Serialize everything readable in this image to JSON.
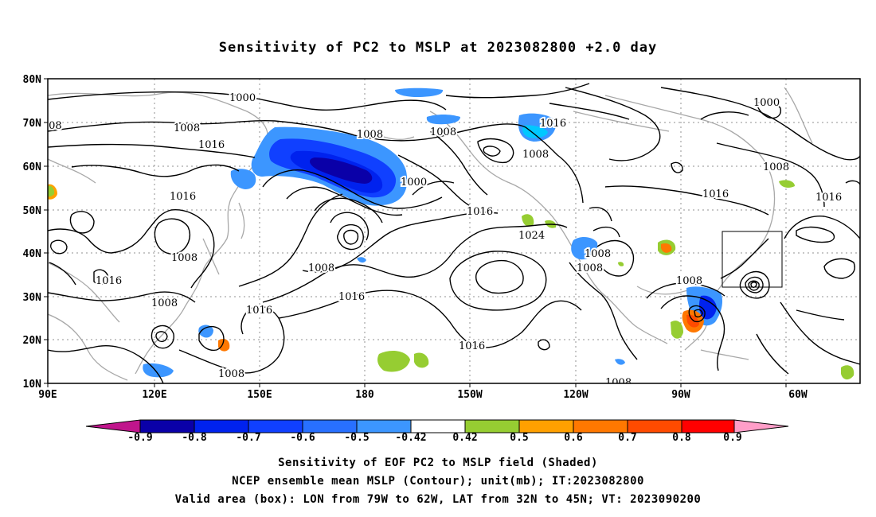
{
  "title": "Sensitivity of PC2 to MSLP at 2023082800 +2.0 day",
  "lat_labels": [
    "80N",
    "70N",
    "60N",
    "50N",
    "40N",
    "30N",
    "20N",
    "10N"
  ],
  "lon_labels": [
    "90E",
    "120E",
    "150E",
    "180",
    "150W",
    "120W",
    "90W",
    "60W"
  ],
  "contour_labels": [
    "1000",
    "1008",
    "1016",
    "1024"
  ],
  "colorbar": {
    "colors": [
      "#c0158c",
      "#0a00a8",
      "#0022ee",
      "#1040ff",
      "#2870ff",
      "#3c96ff",
      "#00c8ff",
      "#ffffff",
      "#96cd32",
      "#ffa000",
      "#ff7800",
      "#ff4b00",
      "#ff0000",
      "#ff9ec8"
    ],
    "labels": [
      "-0.9",
      "-0.8",
      "-0.7",
      "-0.6",
      "-0.5",
      "-0.42",
      "0.42",
      "0.5",
      "0.6",
      "0.7",
      "0.8",
      "0.9"
    ]
  },
  "captions": {
    "line1": "Sensitivity of EOF PC2 to MSLP field (Shaded)",
    "line2": "NCEP ensemble mean MSLP (Contour); unit(mb); IT:2023082800",
    "line3": "Valid area (box): LON from 79W to 62W, LAT from 32N to 45N; VT: 2023090200"
  }
}
